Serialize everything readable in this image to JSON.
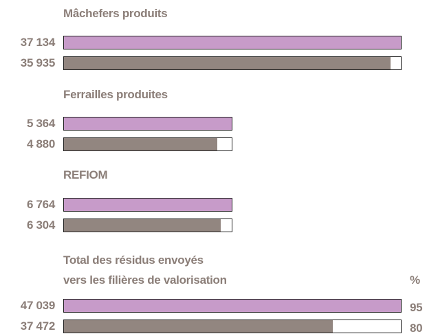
{
  "chart_data": {
    "type": "bar",
    "categories": [
      "Mâchefers produits",
      "Ferrailles produites",
      "REFIOM",
      "Total des résidus envoyés\nvers les filières de valorisation"
    ],
    "series": [
      {
        "color": "#c79bc9",
        "values": [
          37134,
          5364,
          6764,
          47039
        ],
        "value_labels": [
          "37 134",
          "5 364",
          "6 764",
          "47 039"
        ]
      },
      {
        "color": "#928680",
        "values": [
          35935,
          4880,
          6304,
          37472
        ],
        "value_labels": [
          "35 935",
          "4 880",
          "6 304",
          "37 472"
        ]
      }
    ],
    "percent_header": "%",
    "percentages": [
      95,
      80
    ]
  }
}
